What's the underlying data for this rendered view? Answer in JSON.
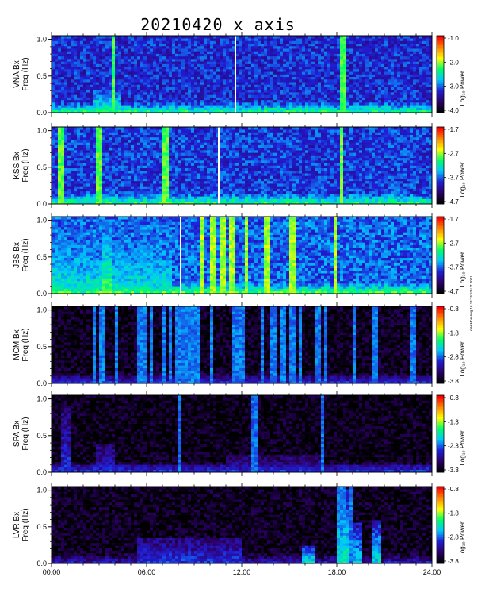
{
  "chart_data": {
    "type": "heatmap",
    "title": "20210420 x axis",
    "timestamp_note": "mH Mon Aug 16 14:15:53 UT 2021",
    "x_tick_labels": [
      "00:00",
      "06:00",
      "12:00",
      "18:00",
      "24:00"
    ],
    "xlim_hours": [
      0,
      24
    ],
    "y_tick_labels": [
      "0.0",
      "0.5",
      "1.0"
    ],
    "ylim_hz": [
      0,
      1.05
    ],
    "colorbar_label": "Log₁₀ Power",
    "colormap": [
      "#000000",
      "#2d006a",
      "#1f1fd8",
      "#00c8ff",
      "#00ff66",
      "#ffff00",
      "#ff8800",
      "#ff0000"
    ],
    "panels": [
      {
        "ylabel": "VNA Bx",
        "ylabel2": "Freq (Hz)",
        "colorbar_ticks": [
          "-1.0",
          "-2.0",
          "-3.0",
          "-4.0"
        ],
        "colorbar_range": [
          -4.0,
          -1.0
        ],
        "background_level": 0.28,
        "data_gaps_hours": [
          11.55
        ],
        "bursts": [
          {
            "t_start": 2.6,
            "t_end": 4.4,
            "f_max": 0.35,
            "level": 0.55
          },
          {
            "t_start": 6.9,
            "t_end": 8.1,
            "f_max": 0.22,
            "level": 0.45
          },
          {
            "t_start": 9.2,
            "t_end": 10.6,
            "f_max": 0.12,
            "level": 0.4
          }
        ],
        "streaks_hours": [
          3.9,
          18.4
        ]
      },
      {
        "ylabel": "KSS Bx",
        "ylabel2": "Freq (Hz)",
        "colorbar_ticks": [
          "-1.7",
          "-2.7",
          "-3.7",
          "-4.7"
        ],
        "colorbar_range": [
          -4.7,
          -1.7
        ],
        "background_level": 0.3,
        "data_gaps_hours": [
          10.5
        ],
        "bursts": [
          {
            "t_start": 0.0,
            "t_end": 24.0,
            "f_max": 0.06,
            "level": 0.45
          },
          {
            "t_start": 21.4,
            "t_end": 21.9,
            "f_max": 0.45,
            "level": 0.45
          }
        ],
        "streaks_hours": [
          0.6,
          3.0,
          7.2,
          18.3
        ]
      },
      {
        "ylabel": "JBS Bx",
        "ylabel2": "Freq (Hz)",
        "colorbar_ticks": [
          "-1.7",
          "-2.7",
          "-3.7",
          "-4.7"
        ],
        "colorbar_range": [
          -4.7,
          -1.7
        ],
        "background_level": 0.34,
        "data_gaps_hours": [
          8.1
        ],
        "bursts": [
          {
            "t_start": 0.0,
            "t_end": 7.6,
            "f_max": 1.0,
            "level": 0.5
          },
          {
            "t_start": 3.2,
            "t_end": 3.9,
            "f_max": 1.0,
            "level": 0.6
          },
          {
            "t_start": 0.0,
            "t_end": 24.0,
            "f_max": 0.08,
            "level": 0.5
          },
          {
            "t_start": 20.8,
            "t_end": 21.5,
            "f_max": 0.38,
            "level": 0.42
          }
        ],
        "streaks_hours": [
          9.5,
          10.2,
          10.8,
          11.4,
          12.3,
          13.6,
          15.2,
          17.9
        ]
      },
      {
        "ylabel": "MCM Bx",
        "ylabel2": "Freq (Hz)",
        "colorbar_ticks": [
          "-0.8",
          "-1.8",
          "-2.8",
          "-3.8"
        ],
        "colorbar_range": [
          -3.8,
          -0.8
        ],
        "background_level": 0.04,
        "data_gaps_hours": [],
        "bursts": [
          {
            "t_start": 0.0,
            "t_end": 24.0,
            "f_max": 0.1,
            "level": 0.28
          }
        ],
        "streaks_hours": [
          2.7,
          3.2,
          4.1,
          5.6,
          5.9,
          6.3,
          7.1,
          7.5,
          8.0,
          8.3,
          8.6,
          8.9,
          9.2,
          10.1,
          11.6,
          12.0,
          13.3,
          14.0,
          14.5,
          14.7,
          15.2,
          15.7,
          16.8,
          17.3,
          19.1,
          20.4,
          22.8
        ]
      },
      {
        "ylabel": "SPA Bx",
        "ylabel2": "Freq (Hz)",
        "colorbar_ticks": [
          "-0.3",
          "-1.3",
          "-2.3",
          "-3.3"
        ],
        "colorbar_range": [
          -3.3,
          -0.3
        ],
        "background_level": 0.03,
        "data_gaps_hours": [],
        "bursts": [
          {
            "t_start": 0.0,
            "t_end": 24.0,
            "f_max": 0.12,
            "level": 0.3
          },
          {
            "t_start": 0.6,
            "t_end": 1.2,
            "f_max": 0.9,
            "level": 0.28
          },
          {
            "t_start": 2.8,
            "t_end": 4.0,
            "f_max": 0.4,
            "level": 0.25
          },
          {
            "t_start": 11.0,
            "t_end": 17.0,
            "f_max": 0.25,
            "level": 0.22
          }
        ],
        "streaks_hours": [
          8.1,
          12.8,
          17.1
        ]
      },
      {
        "ylabel": "LVR Bx",
        "ylabel2": "Freq (Hz)",
        "colorbar_ticks": [
          "-0.8",
          "-1.8",
          "-2.8",
          "-3.8"
        ],
        "colorbar_range": [
          -3.8,
          -0.8
        ],
        "background_level": 0.04,
        "data_gaps_hours": [],
        "bursts": [
          {
            "t_start": 5.5,
            "t_end": 12.0,
            "f_max": 0.35,
            "level": 0.3
          },
          {
            "t_start": 15.8,
            "t_end": 16.6,
            "f_max": 0.25,
            "level": 0.5
          },
          {
            "t_start": 18.0,
            "t_end": 18.8,
            "f_max": 1.0,
            "level": 0.52
          },
          {
            "t_start": 19.0,
            "t_end": 19.6,
            "f_max": 0.55,
            "level": 0.45
          },
          {
            "t_start": 20.2,
            "t_end": 20.8,
            "f_max": 0.6,
            "level": 0.48
          }
        ],
        "streaks_hours": [
          18.2,
          18.5,
          18.9
        ]
      }
    ]
  }
}
